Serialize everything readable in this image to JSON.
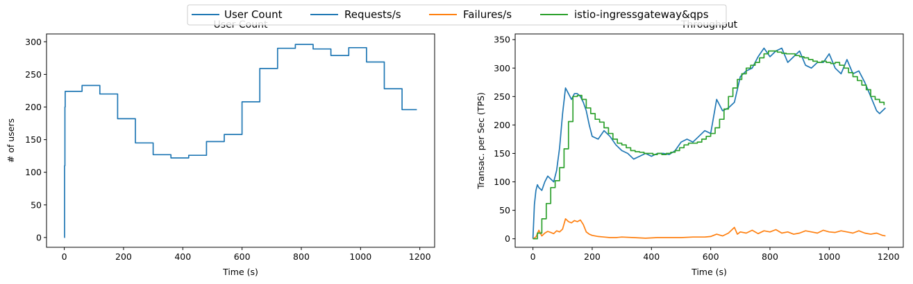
{
  "legend": {
    "entries": [
      {
        "label": "User Count",
        "color": "#1f77b4"
      },
      {
        "label": "Requests/s",
        "color": "#1f77b4"
      },
      {
        "label": "Failures/s",
        "color": "#ff7f0e"
      },
      {
        "label": "istio-ingressgateway&qps",
        "color": "#2ca02c"
      }
    ]
  },
  "chart_data": [
    {
      "type": "line",
      "title": "User Count",
      "xlabel": "Time (s)",
      "ylabel": "# of users",
      "xlim": [
        -60,
        1250
      ],
      "ylim": [
        -15,
        312
      ],
      "xticks": [
        0,
        200,
        400,
        600,
        800,
        1000,
        1200
      ],
      "yticks": [
        0,
        50,
        100,
        150,
        200,
        250,
        300
      ],
      "grid": false,
      "series": [
        {
          "name": "User Count",
          "color": "#1f77b4",
          "step": true,
          "x": [
            0,
            1,
            2,
            3,
            60,
            120,
            180,
            240,
            300,
            360,
            420,
            480,
            540,
            600,
            660,
            720,
            780,
            840,
            900,
            960,
            1020,
            1080,
            1140,
            1190
          ],
          "y": [
            0,
            110,
            200,
            224,
            233,
            220,
            182,
            145,
            127,
            122,
            126,
            147,
            158,
            208,
            259,
            290,
            296,
            289,
            279,
            291,
            269,
            228,
            196,
            196
          ]
        }
      ]
    },
    {
      "type": "line",
      "title": "Throughput",
      "xlabel": "Time (s)",
      "ylabel": "Transac. per Sec (TPS)",
      "xlim": [
        -60,
        1250
      ],
      "ylim": [
        -15,
        360
      ],
      "xticks": [
        0,
        200,
        400,
        600,
        800,
        1000,
        1200
      ],
      "yticks": [
        0,
        50,
        100,
        150,
        200,
        250,
        300,
        350
      ],
      "grid": false,
      "series": [
        {
          "name": "Requests/s",
          "color": "#1f77b4",
          "x": [
            0,
            5,
            10,
            15,
            20,
            30,
            40,
            50,
            60,
            70,
            80,
            90,
            100,
            110,
            120,
            130,
            140,
            150,
            160,
            170,
            180,
            190,
            200,
            220,
            240,
            260,
            280,
            300,
            320,
            340,
            360,
            380,
            400,
            420,
            440,
            460,
            480,
            500,
            520,
            540,
            560,
            580,
            600,
            620,
            640,
            660,
            680,
            700,
            720,
            740,
            760,
            780,
            800,
            820,
            840,
            860,
            880,
            900,
            920,
            940,
            960,
            980,
            1000,
            1020,
            1040,
            1060,
            1080,
            1100,
            1120,
            1140,
            1160,
            1170,
            1180,
            1190
          ],
          "y": [
            0,
            60,
            85,
            95,
            90,
            85,
            100,
            110,
            105,
            100,
            120,
            160,
            220,
            265,
            255,
            245,
            255,
            255,
            250,
            240,
            225,
            200,
            180,
            175,
            190,
            180,
            165,
            155,
            150,
            140,
            145,
            150,
            145,
            150,
            150,
            148,
            155,
            170,
            175,
            170,
            180,
            190,
            185,
            245,
            225,
            230,
            240,
            285,
            295,
            300,
            320,
            335,
            320,
            330,
            335,
            310,
            320,
            330,
            305,
            300,
            310,
            310,
            325,
            300,
            290,
            315,
            290,
            295,
            275,
            250,
            225,
            220,
            225,
            230
          ]
        },
        {
          "name": "Failures/s",
          "color": "#ff7f0e",
          "x": [
            0,
            10,
            20,
            30,
            40,
            50,
            60,
            70,
            80,
            90,
            100,
            110,
            120,
            130,
            140,
            150,
            160,
            170,
            180,
            190,
            200,
            220,
            240,
            260,
            280,
            300,
            340,
            380,
            420,
            460,
            500,
            540,
            580,
            600,
            620,
            640,
            660,
            680,
            690,
            700,
            720,
            740,
            760,
            780,
            800,
            820,
            840,
            860,
            880,
            900,
            920,
            940,
            960,
            980,
            1000,
            1020,
            1040,
            1060,
            1080,
            1100,
            1120,
            1140,
            1160,
            1180,
            1190
          ],
          "y": [
            0,
            3,
            15,
            5,
            10,
            13,
            11,
            9,
            14,
            12,
            17,
            35,
            30,
            28,
            32,
            30,
            33,
            25,
            12,
            8,
            6,
            4,
            3,
            2,
            2,
            3,
            2,
            1,
            2,
            2,
            2,
            3,
            3,
            4,
            8,
            5,
            10,
            20,
            8,
            12,
            10,
            15,
            9,
            14,
            12,
            16,
            10,
            12,
            8,
            10,
            14,
            12,
            10,
            15,
            12,
            11,
            14,
            12,
            10,
            14,
            10,
            8,
            10,
            6,
            5
          ]
        },
        {
          "name": "istio-ingressgateway&qps",
          "color": "#2ca02c",
          "step": true,
          "x": [
            0,
            15,
            30,
            45,
            60,
            75,
            90,
            105,
            120,
            135,
            150,
            165,
            180,
            195,
            210,
            225,
            240,
            255,
            270,
            285,
            300,
            315,
            330,
            345,
            360,
            375,
            390,
            405,
            420,
            435,
            450,
            465,
            480,
            495,
            510,
            525,
            540,
            555,
            570,
            585,
            600,
            615,
            630,
            645,
            660,
            675,
            690,
            705,
            720,
            735,
            750,
            765,
            780,
            795,
            810,
            825,
            840,
            855,
            870,
            885,
            900,
            915,
            930,
            945,
            960,
            975,
            990,
            1005,
            1020,
            1035,
            1050,
            1065,
            1080,
            1095,
            1110,
            1125,
            1140,
            1155,
            1170,
            1185
          ],
          "y": [
            0,
            10,
            35,
            62,
            90,
            102,
            125,
            158,
            206,
            250,
            252,
            245,
            230,
            220,
            210,
            205,
            195,
            185,
            175,
            168,
            165,
            160,
            155,
            153,
            152,
            150,
            150,
            148,
            150,
            148,
            150,
            152,
            155,
            160,
            165,
            168,
            168,
            170,
            175,
            180,
            185,
            195,
            210,
            228,
            250,
            265,
            280,
            290,
            300,
            305,
            310,
            318,
            325,
            330,
            330,
            328,
            326,
            325,
            325,
            322,
            320,
            318,
            315,
            312,
            310,
            312,
            310,
            308,
            310,
            305,
            300,
            292,
            285,
            278,
            270,
            262,
            250,
            245,
            240,
            235
          ]
        }
      ]
    }
  ]
}
